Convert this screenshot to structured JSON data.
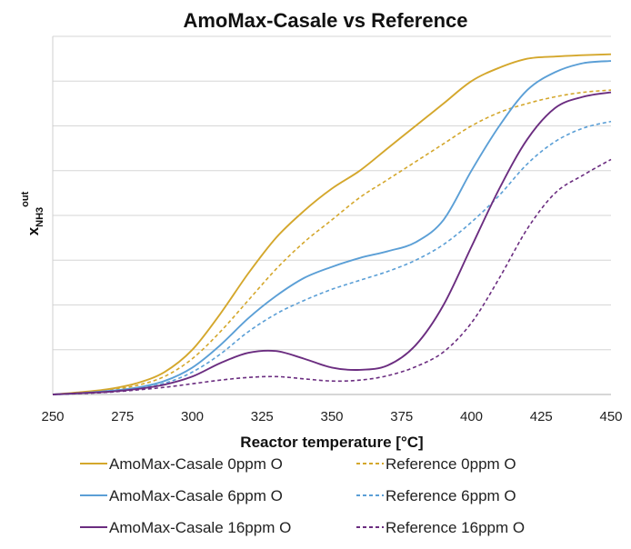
{
  "chart_data": {
    "type": "line",
    "title": "AmoMax-Casale vs Reference",
    "xlabel": "Reactor temperature [°C]",
    "ylabel": {
      "main": "x",
      "sub": "NH3",
      "sup": "out"
    },
    "xlim": [
      250,
      450
    ],
    "ylim": [
      0,
      8
    ],
    "x_ticks": [
      "250",
      "275",
      "300",
      "325",
      "350",
      "375",
      "400",
      "425",
      "450"
    ],
    "grid": true,
    "legend_position": "bottom",
    "series": [
      {
        "name": "AmoMax-Casale 0ppm O",
        "color": "#d4a72c",
        "dash": "solid",
        "x": [
          250,
          260,
          270,
          280,
          290,
          300,
          310,
          320,
          330,
          340,
          350,
          360,
          370,
          380,
          390,
          400,
          410,
          420,
          430,
          440,
          450
        ],
        "y": [
          0.0,
          0.05,
          0.12,
          0.25,
          0.5,
          1.0,
          1.8,
          2.7,
          3.5,
          4.1,
          4.6,
          5.0,
          5.5,
          6.0,
          6.5,
          7.0,
          7.3,
          7.5,
          7.55,
          7.58,
          7.6
        ]
      },
      {
        "name": "Reference 0ppm O",
        "color": "#d4a72c",
        "dash": "dashed",
        "x": [
          250,
          260,
          270,
          280,
          290,
          300,
          310,
          320,
          330,
          340,
          350,
          360,
          370,
          380,
          390,
          400,
          410,
          420,
          430,
          440,
          450
        ],
        "y": [
          0.0,
          0.04,
          0.1,
          0.2,
          0.4,
          0.8,
          1.4,
          2.1,
          2.8,
          3.4,
          3.9,
          4.4,
          4.8,
          5.2,
          5.6,
          6.0,
          6.3,
          6.5,
          6.65,
          6.75,
          6.8
        ]
      },
      {
        "name": "AmoMax-Casale 6ppm O",
        "color": "#5b9fd6",
        "dash": "solid",
        "x": [
          250,
          260,
          270,
          280,
          290,
          300,
          310,
          320,
          330,
          340,
          350,
          360,
          370,
          380,
          390,
          400,
          410,
          420,
          430,
          440,
          450
        ],
        "y": [
          0.0,
          0.03,
          0.08,
          0.15,
          0.3,
          0.6,
          1.1,
          1.7,
          2.2,
          2.6,
          2.85,
          3.05,
          3.2,
          3.4,
          3.9,
          5.0,
          6.0,
          6.8,
          7.2,
          7.4,
          7.45
        ]
      },
      {
        "name": "Reference 6ppm O",
        "color": "#5b9fd6",
        "dash": "dashed",
        "x": [
          250,
          260,
          270,
          280,
          290,
          300,
          310,
          320,
          330,
          340,
          350,
          360,
          370,
          380,
          390,
          400,
          410,
          420,
          430,
          440,
          450
        ],
        "y": [
          0.0,
          0.03,
          0.07,
          0.13,
          0.25,
          0.5,
          0.9,
          1.4,
          1.8,
          2.1,
          2.35,
          2.55,
          2.75,
          3.0,
          3.35,
          3.85,
          4.45,
          5.15,
          5.65,
          5.95,
          6.1
        ]
      },
      {
        "name": "AmoMax-Casale 16ppm O",
        "color": "#6b2d80",
        "dash": "solid",
        "x": [
          250,
          260,
          270,
          280,
          290,
          300,
          310,
          320,
          330,
          340,
          350,
          360,
          370,
          380,
          390,
          400,
          410,
          420,
          430,
          440,
          450
        ],
        "y": [
          0.0,
          0.03,
          0.06,
          0.12,
          0.22,
          0.4,
          0.7,
          0.93,
          0.97,
          0.8,
          0.6,
          0.55,
          0.65,
          1.1,
          2.0,
          3.3,
          4.6,
          5.7,
          6.4,
          6.65,
          6.75
        ]
      },
      {
        "name": "Reference 16ppm O",
        "color": "#6b2d80",
        "dash": "dashed",
        "x": [
          250,
          260,
          270,
          280,
          290,
          300,
          310,
          320,
          330,
          340,
          350,
          360,
          370,
          380,
          390,
          400,
          410,
          420,
          430,
          440,
          450
        ],
        "y": [
          0.0,
          0.02,
          0.05,
          0.1,
          0.16,
          0.24,
          0.32,
          0.38,
          0.4,
          0.35,
          0.3,
          0.32,
          0.42,
          0.62,
          0.95,
          1.6,
          2.6,
          3.7,
          4.5,
          4.9,
          5.25
        ]
      }
    ]
  }
}
